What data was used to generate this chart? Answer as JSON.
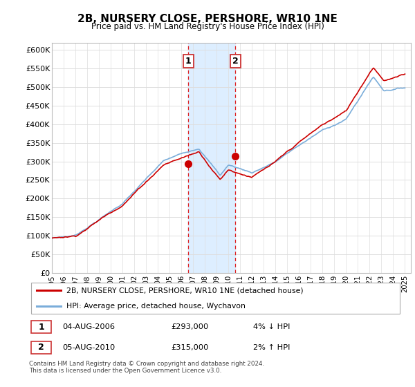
{
  "title": "2B, NURSERY CLOSE, PERSHORE, WR10 1NE",
  "subtitle": "Price paid vs. HM Land Registry's House Price Index (HPI)",
  "ylabel_ticks": [
    "£0",
    "£50K",
    "£100K",
    "£150K",
    "£200K",
    "£250K",
    "£300K",
    "£350K",
    "£400K",
    "£450K",
    "£500K",
    "£550K",
    "£600K"
  ],
  "ylim": [
    0,
    620000
  ],
  "ytick_vals": [
    0,
    50000,
    100000,
    150000,
    200000,
    250000,
    300000,
    350000,
    400000,
    450000,
    500000,
    550000,
    600000
  ],
  "sale1_year": 2006.58,
  "sale1_price": 293000,
  "sale1_label": "1",
  "sale1_date": "04-AUG-2006",
  "sale1_hpi_diff": "4% ↓ HPI",
  "sale2_year": 2010.58,
  "sale2_price": 315000,
  "sale2_label": "2",
  "sale2_date": "05-AUG-2010",
  "sale2_hpi_diff": "2% ↑ HPI",
  "line_color_red": "#cc0000",
  "line_color_blue": "#7aadda",
  "shade_color": "#ddeeff",
  "legend_label_red": "2B, NURSERY CLOSE, PERSHORE, WR10 1NE (detached house)",
  "legend_label_blue": "HPI: Average price, detached house, Wychavon",
  "footnote": "Contains HM Land Registry data © Crown copyright and database right 2024.\nThis data is licensed under the Open Government Licence v3.0.",
  "background_color": "#ffffff",
  "grid_color": "#dddddd"
}
